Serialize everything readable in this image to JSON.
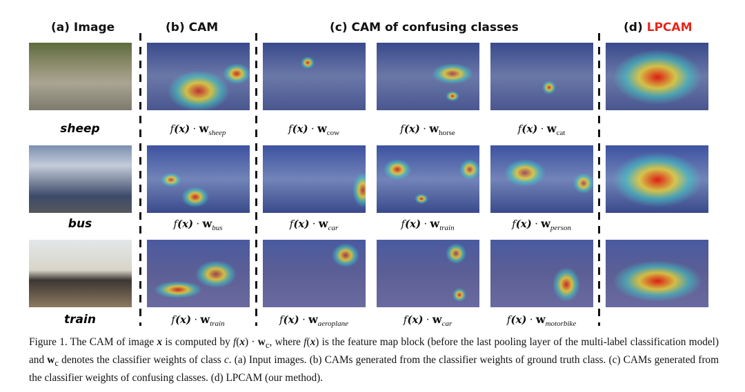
{
  "headers": {
    "a": "(a)  Image",
    "b": "(b)  CAM",
    "c": "(c)  CAM of confusing classes",
    "d_prefix": "(d) ",
    "d_name": "LPCAM"
  },
  "colors": {
    "lpcam_red": "#e8261b",
    "cam_base": "#3a4a8c"
  },
  "rows": [
    {
      "class": "sheep",
      "cam": "sheep",
      "confusing": [
        "cow",
        "horse",
        "cat"
      ]
    },
    {
      "class": "bus",
      "cam": "bus",
      "confusing": [
        "car",
        "train",
        "person"
      ]
    },
    {
      "class": "train",
      "cam": "train",
      "confusing": [
        "aeroplane",
        "car",
        "motorbike"
      ]
    }
  ],
  "formula": {
    "f": "f",
    "x": "(x)",
    "dot": " · ",
    "w": "w"
  },
  "caption": "Figure 1.  The CAM of image x is computed by f(x) · w_c, where f(x) is the feature map block (before the last pooling layer of the multi-label classification model) and w_c denotes the classifier weights of class c. (a) Input images. (b) CAMs generated from the classifier weights of ground truth class. (c) CAMs generated from the classifier weights of confusing classes. (d) LPCAM (our method)."
}
